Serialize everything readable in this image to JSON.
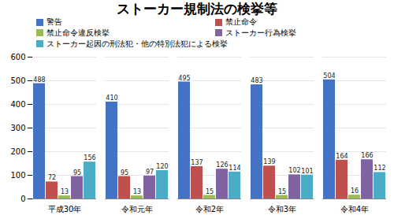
{
  "chart_data": {
    "type": "bar",
    "title": "ストーカー規制法の検挙等",
    "categories": [
      "平成30年",
      "令和元年",
      "令和2年",
      "令和3年",
      "令和4年"
    ],
    "series": [
      {
        "name": "警告",
        "color": "#4472c4",
        "values": [
          488,
          410,
          495,
          483,
          504
        ]
      },
      {
        "name": "禁止命令",
        "color": "#c0504d",
        "values": [
          72,
          95,
          137,
          139,
          164
        ]
      },
      {
        "name": "禁止命令違反検挙",
        "color": "#9bbb59",
        "values": [
          13,
          13,
          15,
          15,
          16
        ]
      },
      {
        "name": "ストーカー行為検挙",
        "color": "#8064a2",
        "values": [
          95,
          97,
          126,
          102,
          166
        ]
      },
      {
        "name": "ストーカー起因の刑法犯・他の特別法犯による検挙",
        "color": "#4bacc6",
        "values": [
          156,
          120,
          114,
          101,
          112
        ]
      }
    ],
    "ylim": [
      0,
      600
    ],
    "yticks": [
      0,
      100,
      200,
      300,
      400,
      500,
      600
    ],
    "grid": true,
    "legend": "top",
    "data_labels": true
  }
}
